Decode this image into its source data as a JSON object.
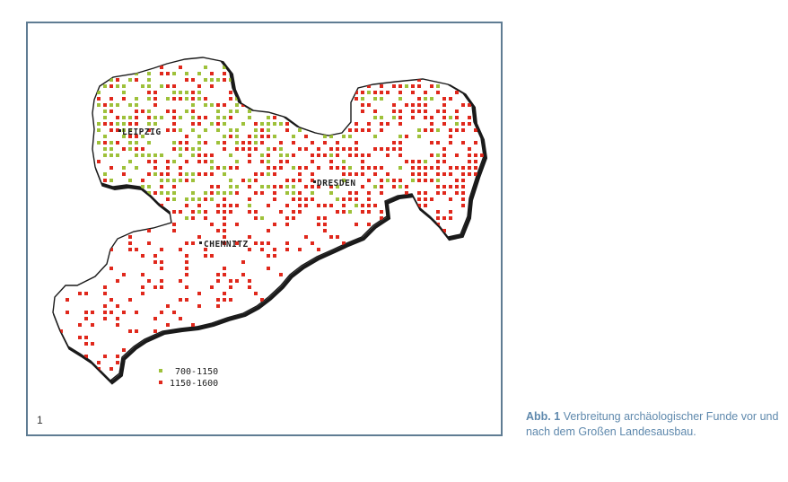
{
  "figure_number": "1",
  "caption": {
    "label": "Abb. 1",
    "text": "Verbreitung archäologischer Funde vor und nach dem Großen Landesausbau."
  },
  "colors": {
    "early": "#9ec13a",
    "late": "#e0281c",
    "outline": "#1a1a1a",
    "frame": "#5f7c93",
    "caption": "#5f89ad"
  },
  "cities": [
    {
      "name": "LEIPZIG"
    },
    {
      "name": "DRESDEN"
    },
    {
      "name": "CHEMNITZ"
    }
  ],
  "legend": [
    {
      "label": "700-1150",
      "color": "#9ec13a"
    },
    {
      "label": "1150-1600",
      "color": "#e0281c"
    }
  ]
}
